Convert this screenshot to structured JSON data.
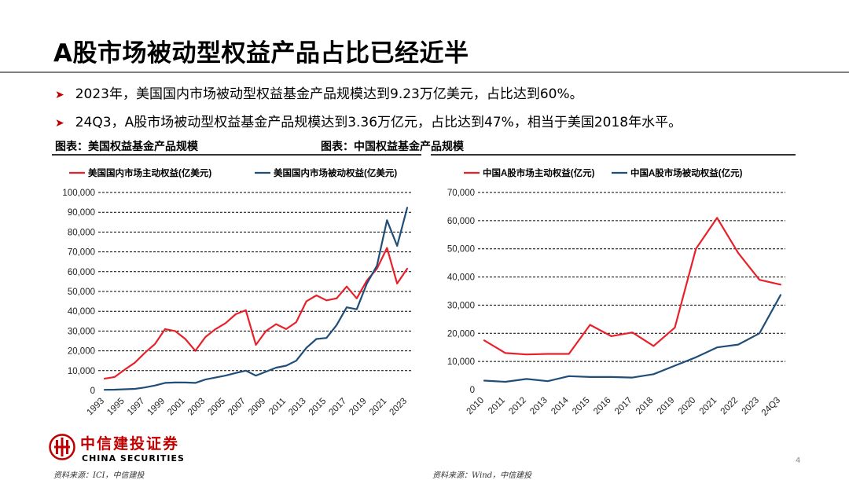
{
  "title": "A股市场被动型权益产品占比已经近半",
  "bullets": [
    "2023年，美国国内市场被动型权益基金产品规模达到9.23万亿美元，占比达到60%。",
    "24Q3，A股市场被动型权益基金产品规模达到3.36万亿元，占比达到47%，相当于美国2018年水平。"
  ],
  "captions": {
    "left": "图表：美国权益基金产品规模",
    "right": "图表：中国权益基金产品规模"
  },
  "sources": {
    "left": "资料来源：ICI，中信建投",
    "right": "资料来源：Wind，中信建投"
  },
  "logo": {
    "cn": "中信建投证券",
    "en": "CHINA SECURITIES"
  },
  "page_number": "4",
  "colors": {
    "active": "#e8202a",
    "passive": "#1f4e79",
    "accent": "#c00000"
  },
  "chart_data": [
    {
      "type": "line",
      "x": [
        1993,
        1994,
        1995,
        1996,
        1997,
        1998,
        1999,
        2000,
        2001,
        2002,
        2003,
        2004,
        2005,
        2006,
        2007,
        2008,
        2009,
        2010,
        2011,
        2012,
        2013,
        2014,
        2015,
        2016,
        2017,
        2018,
        2019,
        2020,
        2021,
        2022,
        2023
      ],
      "xticks": [
        "1993",
        "1995",
        "1997",
        "1999",
        "2001",
        "2003",
        "2005",
        "2007",
        "2009",
        "2011",
        "2013",
        "2015",
        "2017",
        "2019",
        "2021",
        "2023"
      ],
      "ylim": [
        0,
        100000
      ],
      "yticks": [
        "0",
        "10,000",
        "20,000",
        "30,000",
        "40,000",
        "50,000",
        "60,000",
        "70,000",
        "80,000",
        "90,000",
        "100,000"
      ],
      "grid": true,
      "legend_position": "top",
      "series": [
        {
          "name": "美国国内市场主动权益(亿美元)",
          "color": "#e8202a",
          "values": [
            6000,
            6800,
            10500,
            14000,
            19000,
            23500,
            31000,
            30000,
            26000,
            20000,
            27000,
            31000,
            34000,
            38500,
            40500,
            23000,
            30000,
            33500,
            31000,
            34500,
            45000,
            48000,
            45500,
            46500,
            52500,
            46500,
            55500,
            61500,
            72000,
            54000,
            61500
          ]
        },
        {
          "name": "美国国内市场被动权益(亿美元)",
          "color": "#1f4e79",
          "values": [
            300,
            400,
            600,
            800,
            1500,
            2500,
            3800,
            4000,
            4000,
            3800,
            5500,
            6500,
            7500,
            8800,
            10000,
            7500,
            9500,
            11500,
            12500,
            15000,
            21500,
            26000,
            26500,
            33000,
            42000,
            41000,
            54000,
            63000,
            86000,
            73000,
            92300
          ]
        }
      ]
    },
    {
      "type": "line",
      "x": [
        "2010",
        "2011",
        "2012",
        "2013",
        "2014",
        "2015",
        "2016",
        "2017",
        "2018",
        "2019",
        "2020",
        "2021",
        "2022",
        "2023",
        "24Q3"
      ],
      "ylim": [
        0,
        70000
      ],
      "yticks": [
        "0",
        "10,000",
        "20,000",
        "30,000",
        "40,000",
        "50,000",
        "60,000",
        "70,000"
      ],
      "grid": true,
      "legend_position": "top",
      "series": [
        {
          "name": "中国A股市场主动权益(亿元)",
          "color": "#e8202a",
          "values": [
            17500,
            13000,
            12500,
            12700,
            12700,
            23000,
            19000,
            20300,
            15500,
            22000,
            50000,
            61000,
            48500,
            39000,
            37300
          ]
        },
        {
          "name": "中国A股市场被动权益(亿元)",
          "color": "#1f4e79",
          "values": [
            3200,
            2800,
            3800,
            3000,
            4800,
            4500,
            4500,
            4300,
            5500,
            8500,
            11500,
            15000,
            16000,
            20000,
            33600
          ]
        }
      ]
    }
  ]
}
